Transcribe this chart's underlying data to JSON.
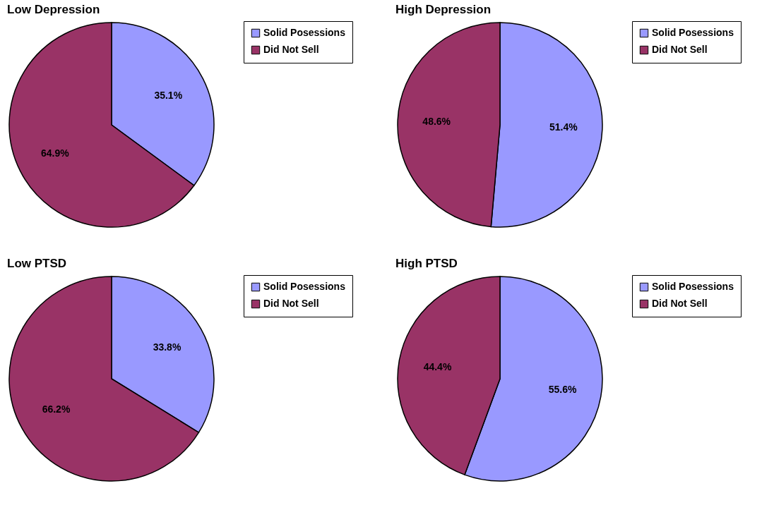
{
  "chart_data": [
    {
      "type": "pie",
      "title": "Low Depression",
      "categories": [
        "Solid Posessions",
        "Did Not Sell"
      ],
      "values": [
        35.1,
        64.9
      ],
      "colors": [
        "#9999ff",
        "#993366"
      ],
      "value_labels": [
        "35.1%",
        "64.9%"
      ],
      "legend": "right"
    },
    {
      "type": "pie",
      "title": "High Depression",
      "categories": [
        "Solid Posessions",
        "Did Not Sell"
      ],
      "values": [
        51.4,
        48.6
      ],
      "colors": [
        "#9999ff",
        "#993366"
      ],
      "value_labels": [
        "51.4%",
        "48.6%"
      ],
      "legend": "right"
    },
    {
      "type": "pie",
      "title": "Low PTSD",
      "categories": [
        "Solid Posessions",
        "Did Not Sell"
      ],
      "values": [
        33.8,
        66.2
      ],
      "colors": [
        "#9999ff",
        "#993366"
      ],
      "value_labels": [
        "33.8%",
        "66.2%"
      ],
      "legend": "right"
    },
    {
      "type": "pie",
      "title": "High PTSD",
      "categories": [
        "Solid Posessions",
        "Did Not Sell"
      ],
      "values": [
        55.6,
        44.4
      ],
      "colors": [
        "#9999ff",
        "#993366"
      ],
      "value_labels": [
        "55.6%",
        "44.4%"
      ],
      "legend": "right"
    }
  ]
}
